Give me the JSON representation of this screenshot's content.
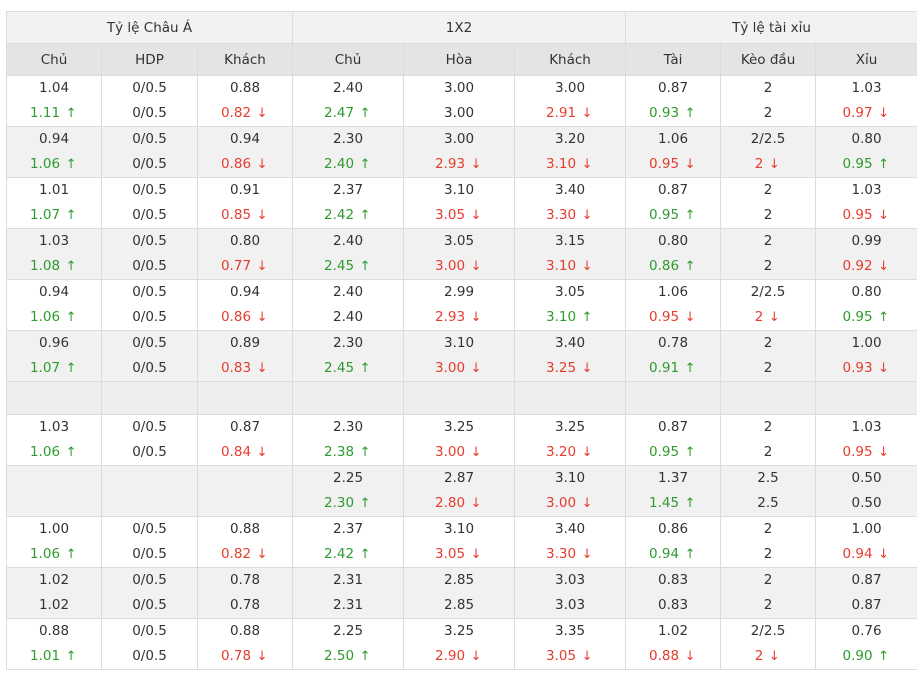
{
  "groups": [
    "Tỷ lệ Châu Á",
    "1X2",
    "Tỷ lệ tài xỉu"
  ],
  "columns": [
    "Chủ",
    "HDP",
    "Khách",
    "Chủ",
    "Hòa",
    "Khách",
    "Tài",
    "Kèo đầu",
    "Xỉu"
  ],
  "arrows": {
    "up": "↑",
    "down": "↓"
  },
  "colors": {
    "up": "#2e9b2e",
    "down": "#e63c2e",
    "header_bg": "#e4e4e4",
    "alt_row_bg": "#f1f1f1"
  },
  "rows": [
    {
      "cells": [
        [
          "1.04",
          "1.11",
          "up"
        ],
        [
          "0/0.5",
          "0/0.5",
          ""
        ],
        [
          "0.88",
          "0.82",
          "down"
        ],
        [
          "2.40",
          "2.47",
          "up"
        ],
        [
          "3.00",
          "3.00",
          ""
        ],
        [
          "3.00",
          "2.91",
          "down"
        ],
        [
          "0.87",
          "0.93",
          "up"
        ],
        [
          "2",
          "2",
          ""
        ],
        [
          "1.03",
          "0.97",
          "down"
        ]
      ]
    },
    {
      "cells": [
        [
          "0.94",
          "1.06",
          "up"
        ],
        [
          "0/0.5",
          "0/0.5",
          ""
        ],
        [
          "0.94",
          "0.86",
          "down"
        ],
        [
          "2.30",
          "2.40",
          "up"
        ],
        [
          "3.00",
          "2.93",
          "down"
        ],
        [
          "3.20",
          "3.10",
          "down"
        ],
        [
          "1.06",
          "0.95",
          "down"
        ],
        [
          "2/2.5",
          "2",
          "down"
        ],
        [
          "0.80",
          "0.95",
          "up"
        ]
      ]
    },
    {
      "cells": [
        [
          "1.01",
          "1.07",
          "up"
        ],
        [
          "0/0.5",
          "0/0.5",
          ""
        ],
        [
          "0.91",
          "0.85",
          "down"
        ],
        [
          "2.37",
          "2.42",
          "up"
        ],
        [
          "3.10",
          "3.05",
          "down"
        ],
        [
          "3.40",
          "3.30",
          "down"
        ],
        [
          "0.87",
          "0.95",
          "up"
        ],
        [
          "2",
          "2",
          ""
        ],
        [
          "1.03",
          "0.95",
          "down"
        ]
      ]
    },
    {
      "cells": [
        [
          "1.03",
          "1.08",
          "up"
        ],
        [
          "0/0.5",
          "0/0.5",
          ""
        ],
        [
          "0.80",
          "0.77",
          "down"
        ],
        [
          "2.40",
          "2.45",
          "up"
        ],
        [
          "3.05",
          "3.00",
          "down"
        ],
        [
          "3.15",
          "3.10",
          "down"
        ],
        [
          "0.80",
          "0.86",
          "up"
        ],
        [
          "2",
          "2",
          ""
        ],
        [
          "0.99",
          "0.92",
          "down"
        ]
      ]
    },
    {
      "cells": [
        [
          "0.94",
          "1.06",
          "up"
        ],
        [
          "0/0.5",
          "0/0.5",
          ""
        ],
        [
          "0.94",
          "0.86",
          "down"
        ],
        [
          "2.40",
          "2.40",
          ""
        ],
        [
          "2.99",
          "2.93",
          "down"
        ],
        [
          "3.05",
          "3.10",
          "up"
        ],
        [
          "1.06",
          "0.95",
          "down"
        ],
        [
          "2/2.5",
          "2",
          "down"
        ],
        [
          "0.80",
          "0.95",
          "up"
        ]
      ]
    },
    {
      "cells": [
        [
          "0.96",
          "1.07",
          "up"
        ],
        [
          "0/0.5",
          "0/0.5",
          ""
        ],
        [
          "0.89",
          "0.83",
          "down"
        ],
        [
          "2.30",
          "2.45",
          "up"
        ],
        [
          "3.10",
          "3.00",
          "down"
        ],
        [
          "3.40",
          "3.25",
          "down"
        ],
        [
          "0.78",
          "0.91",
          "up"
        ],
        [
          "2",
          "2",
          ""
        ],
        [
          "1.00",
          "0.93",
          "down"
        ]
      ]
    },
    {
      "empty": true
    },
    {
      "cells": [
        [
          "1.03",
          "1.06",
          "up"
        ],
        [
          "0/0.5",
          "0/0.5",
          ""
        ],
        [
          "0.87",
          "0.84",
          "down"
        ],
        [
          "2.30",
          "2.38",
          "up"
        ],
        [
          "3.25",
          "3.00",
          "down"
        ],
        [
          "3.25",
          "3.20",
          "down"
        ],
        [
          "0.87",
          "0.95",
          "up"
        ],
        [
          "2",
          "2",
          ""
        ],
        [
          "1.03",
          "0.95",
          "down"
        ]
      ]
    },
    {
      "cells": [
        [
          "",
          "",
          ""
        ],
        [
          "",
          "",
          ""
        ],
        [
          "",
          "",
          ""
        ],
        [
          "2.25",
          "2.30",
          "up"
        ],
        [
          "2.87",
          "2.80",
          "down"
        ],
        [
          "3.10",
          "3.00",
          "down"
        ],
        [
          "1.37",
          "1.45",
          "up"
        ],
        [
          "2.5",
          "2.5",
          ""
        ],
        [
          "0.50",
          "0.50",
          ""
        ]
      ]
    },
    {
      "cells": [
        [
          "1.00",
          "1.06",
          "up"
        ],
        [
          "0/0.5",
          "0/0.5",
          ""
        ],
        [
          "0.88",
          "0.82",
          "down"
        ],
        [
          "2.37",
          "2.42",
          "up"
        ],
        [
          "3.10",
          "3.05",
          "down"
        ],
        [
          "3.40",
          "3.30",
          "down"
        ],
        [
          "0.86",
          "0.94",
          "up"
        ],
        [
          "2",
          "2",
          ""
        ],
        [
          "1.00",
          "0.94",
          "down"
        ]
      ]
    },
    {
      "cells": [
        [
          "1.02",
          "1.02",
          ""
        ],
        [
          "0/0.5",
          "0/0.5",
          ""
        ],
        [
          "0.78",
          "0.78",
          ""
        ],
        [
          "2.31",
          "2.31",
          ""
        ],
        [
          "2.85",
          "2.85",
          ""
        ],
        [
          "3.03",
          "3.03",
          ""
        ],
        [
          "0.83",
          "0.83",
          ""
        ],
        [
          "2",
          "2",
          ""
        ],
        [
          "0.87",
          "0.87",
          ""
        ]
      ]
    },
    {
      "cells": [
        [
          "0.88",
          "1.01",
          "up"
        ],
        [
          "0/0.5",
          "0/0.5",
          ""
        ],
        [
          "0.88",
          "0.78",
          "down"
        ],
        [
          "2.25",
          "2.50",
          "up"
        ],
        [
          "3.25",
          "2.90",
          "down"
        ],
        [
          "3.35",
          "3.05",
          "down"
        ],
        [
          "1.02",
          "0.88",
          "down"
        ],
        [
          "2/2.5",
          "2",
          "down"
        ],
        [
          "0.76",
          "0.90",
          "up"
        ]
      ]
    }
  ]
}
